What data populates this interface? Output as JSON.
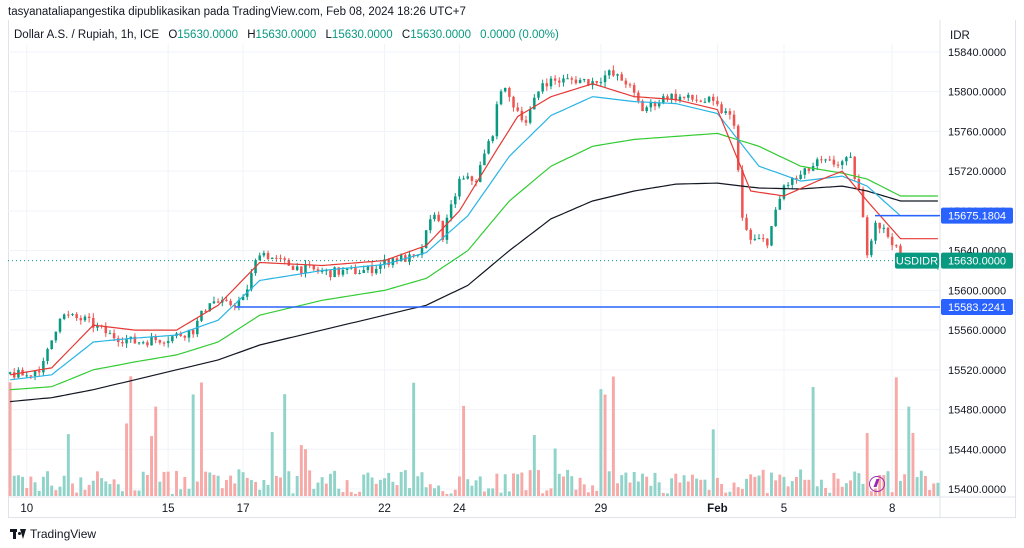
{
  "header": {
    "attribution": "tasyanataliapangestika dipublikasikan pada TradingView.com, Feb 08, 2024 18:26 UTC+7"
  },
  "legend": {
    "symbol": "Dollar A.S. / Rupiah, 1h, ICE",
    "o_label": "O",
    "o_value": "15630.0000",
    "h_label": "H",
    "h_value": "15630.0000",
    "l_label": "L",
    "l_value": "15630.0000",
    "c_label": "C",
    "c_value": "15630.0000",
    "change": "0.0000 (0.00%)"
  },
  "price_axis": {
    "currency": "IDR"
  },
  "branding": {
    "name": "TradingView"
  },
  "colors": {
    "up": "#089981",
    "down": "#ef5350",
    "ema_fast": "#e53935",
    "ema_mid": "#2ab4e3",
    "ema_slow": "#33cc33",
    "ema_long": "#131722",
    "level_line": "#2962ff",
    "grid": "#f0f3fa",
    "axis_text": "#131722",
    "vol_up": "#8fd3c9",
    "vol_down": "#f7a9a7",
    "tag_green": "#089981",
    "tag_blue": "#2962ff"
  },
  "chart_data": {
    "type": "candlestick",
    "interval": "1h",
    "ylim": [
      15393,
      15848
    ],
    "y_ticks": [
      "15840.0000",
      "15800.0000",
      "15760.0000",
      "15720.0000",
      "15680.0000",
      "15640.0000",
      "15600.0000",
      "15560.0000",
      "15520.0000",
      "15480.0000",
      "15440.0000",
      "15400.0000"
    ],
    "y_tick_values": [
      15840,
      15800,
      15760,
      15720,
      15680,
      15640,
      15600,
      15560,
      15520,
      15480,
      15440,
      15400
    ],
    "x_ticks": [
      "10",
      "15",
      "17",
      "22",
      "24",
      "29",
      "Feb",
      "5",
      "8"
    ],
    "x_tick_positions": [
      4,
      38,
      56,
      90,
      108,
      142,
      170,
      186,
      212
    ],
    "bar_count": 224,
    "horizontal_levels": [
      {
        "label": "15583.2241",
        "value": 15583.2241
      },
      {
        "label": "15675.1804",
        "value": 15675.1804
      }
    ],
    "last_price_tag": {
      "symbol": "USDIDR",
      "value": "15630.0000",
      "price": 15630
    },
    "ohlc_anchor": [
      [
        0,
        15516
      ],
      [
        4,
        15514
      ],
      [
        8,
        15525
      ],
      [
        12,
        15575
      ],
      [
        18,
        15570
      ],
      [
        24,
        15555
      ],
      [
        30,
        15548
      ],
      [
        38,
        15552
      ],
      [
        44,
        15560
      ],
      [
        48,
        15590
      ],
      [
        52,
        15585
      ],
      [
        56,
        15590
      ],
      [
        60,
        15640
      ],
      [
        64,
        15630
      ],
      [
        70,
        15622
      ],
      [
        76,
        15618
      ],
      [
        86,
        15620
      ],
      [
        92,
        15632
      ],
      [
        98,
        15632
      ],
      [
        102,
        15680
      ],
      [
        104,
        15655
      ],
      [
        108,
        15710
      ],
      [
        112,
        15712
      ],
      [
        116,
        15760
      ],
      [
        118,
        15805
      ],
      [
        124,
        15770
      ],
      [
        128,
        15810
      ],
      [
        136,
        15812
      ],
      [
        140,
        15810
      ],
      [
        144,
        15818
      ],
      [
        148,
        15810
      ],
      [
        152,
        15782
      ],
      [
        158,
        15796
      ],
      [
        164,
        15792
      ],
      [
        168,
        15790
      ],
      [
        172,
        15778
      ],
      [
        174,
        15770
      ],
      [
        176,
        15670
      ],
      [
        178,
        15650
      ],
      [
        182,
        15650
      ],
      [
        186,
        15705
      ],
      [
        190,
        15715
      ],
      [
        194,
        15728
      ],
      [
        198,
        15728
      ],
      [
        202,
        15730
      ],
      [
        204,
        15700
      ],
      [
        206,
        15640
      ],
      [
        208,
        15670
      ],
      [
        212,
        15650
      ],
      [
        214,
        15630
      ]
    ],
    "ema_fast_anchor": [
      [
        0,
        15515
      ],
      [
        10,
        15522
      ],
      [
        20,
        15565
      ],
      [
        30,
        15560
      ],
      [
        40,
        15560
      ],
      [
        50,
        15585
      ],
      [
        60,
        15628
      ],
      [
        75,
        15625
      ],
      [
        90,
        15630
      ],
      [
        100,
        15645
      ],
      [
        108,
        15680
      ],
      [
        116,
        15735
      ],
      [
        122,
        15775
      ],
      [
        130,
        15795
      ],
      [
        140,
        15808
      ],
      [
        150,
        15795
      ],
      [
        160,
        15792
      ],
      [
        170,
        15782
      ],
      [
        178,
        15700
      ],
      [
        186,
        15695
      ],
      [
        194,
        15710
      ],
      [
        200,
        15720
      ],
      [
        206,
        15690
      ],
      [
        214,
        15652
      ]
    ],
    "ema_mid_anchor": [
      [
        0,
        15510
      ],
      [
        10,
        15515
      ],
      [
        20,
        15548
      ],
      [
        30,
        15552
      ],
      [
        40,
        15555
      ],
      [
        50,
        15570
      ],
      [
        60,
        15610
      ],
      [
        75,
        15620
      ],
      [
        90,
        15626
      ],
      [
        100,
        15638
      ],
      [
        110,
        15675
      ],
      [
        120,
        15735
      ],
      [
        130,
        15776
      ],
      [
        140,
        15795
      ],
      [
        150,
        15790
      ],
      [
        160,
        15788
      ],
      [
        170,
        15778
      ],
      [
        180,
        15725
      ],
      [
        190,
        15710
      ],
      [
        200,
        15715
      ],
      [
        206,
        15705
      ],
      [
        214,
        15675
      ]
    ],
    "ema_slow_anchor": [
      [
        0,
        15500
      ],
      [
        10,
        15503
      ],
      [
        20,
        15520
      ],
      [
        30,
        15528
      ],
      [
        40,
        15535
      ],
      [
        50,
        15548
      ],
      [
        60,
        15575
      ],
      [
        75,
        15590
      ],
      [
        90,
        15600
      ],
      [
        100,
        15612
      ],
      [
        110,
        15640
      ],
      [
        120,
        15690
      ],
      [
        130,
        15725
      ],
      [
        140,
        15745
      ],
      [
        150,
        15752
      ],
      [
        170,
        15758
      ],
      [
        180,
        15745
      ],
      [
        190,
        15725
      ],
      [
        200,
        15718
      ],
      [
        206,
        15712
      ],
      [
        214,
        15695
      ]
    ],
    "ema_long_anchor": [
      [
        0,
        15488
      ],
      [
        10,
        15492
      ],
      [
        20,
        15500
      ],
      [
        30,
        15510
      ],
      [
        40,
        15520
      ],
      [
        50,
        15530
      ],
      [
        60,
        15545
      ],
      [
        75,
        15560
      ],
      [
        90,
        15575
      ],
      [
        100,
        15585
      ],
      [
        110,
        15605
      ],
      [
        120,
        15640
      ],
      [
        130,
        15672
      ],
      [
        140,
        15690
      ],
      [
        150,
        15700
      ],
      [
        160,
        15707
      ],
      [
        170,
        15708
      ],
      [
        180,
        15703
      ],
      [
        190,
        15702
      ],
      [
        200,
        15705
      ],
      [
        206,
        15700
      ],
      [
        214,
        15690
      ]
    ]
  }
}
